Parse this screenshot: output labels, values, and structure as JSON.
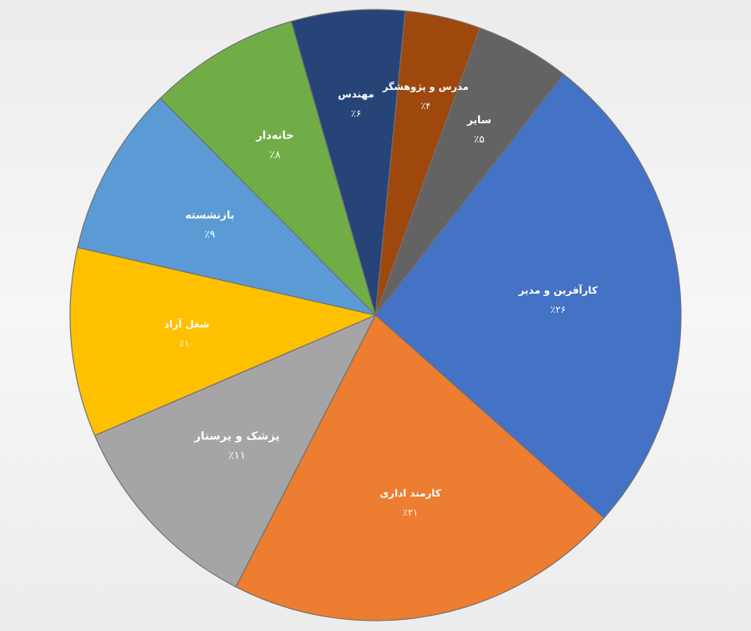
{
  "chart_data": {
    "type": "pie",
    "title": "",
    "start_angle_deg": -52,
    "direction": "clockwise",
    "slices": [
      {
        "label": "کارآفرین و مدیر",
        "value_text": "٪۲۶",
        "value": 26,
        "color": "#4472C4"
      },
      {
        "label": "کارمند اداری",
        "value_text": "٪۲۱",
        "value": 21,
        "color": "#ED7D31"
      },
      {
        "label": "پزشک و پرستار",
        "value_text": "٪۱۱",
        "value": 11,
        "color": "#A5A5A5"
      },
      {
        "label": "شغل آزاد",
        "value_text": "٪۱۰",
        "value": 10,
        "color": "#FFC000"
      },
      {
        "label": "بازنشسته",
        "value_text": "٪۹",
        "value": 9,
        "color": "#5B9BD5"
      },
      {
        "label": "خانه‌دار",
        "value_text": "٪۸",
        "value": 8,
        "color": "#70AD47"
      },
      {
        "label": "مهندس",
        "value_text": "٪۶",
        "value": 6,
        "color": "#264478"
      },
      {
        "label": "مدرس و پژوهشگر",
        "value_text": "٪۴",
        "value": 4,
        "color": "#9E480E"
      },
      {
        "label": "سایر",
        "value_text": "٪۵",
        "value": 5,
        "color": "#636363"
      }
    ]
  }
}
